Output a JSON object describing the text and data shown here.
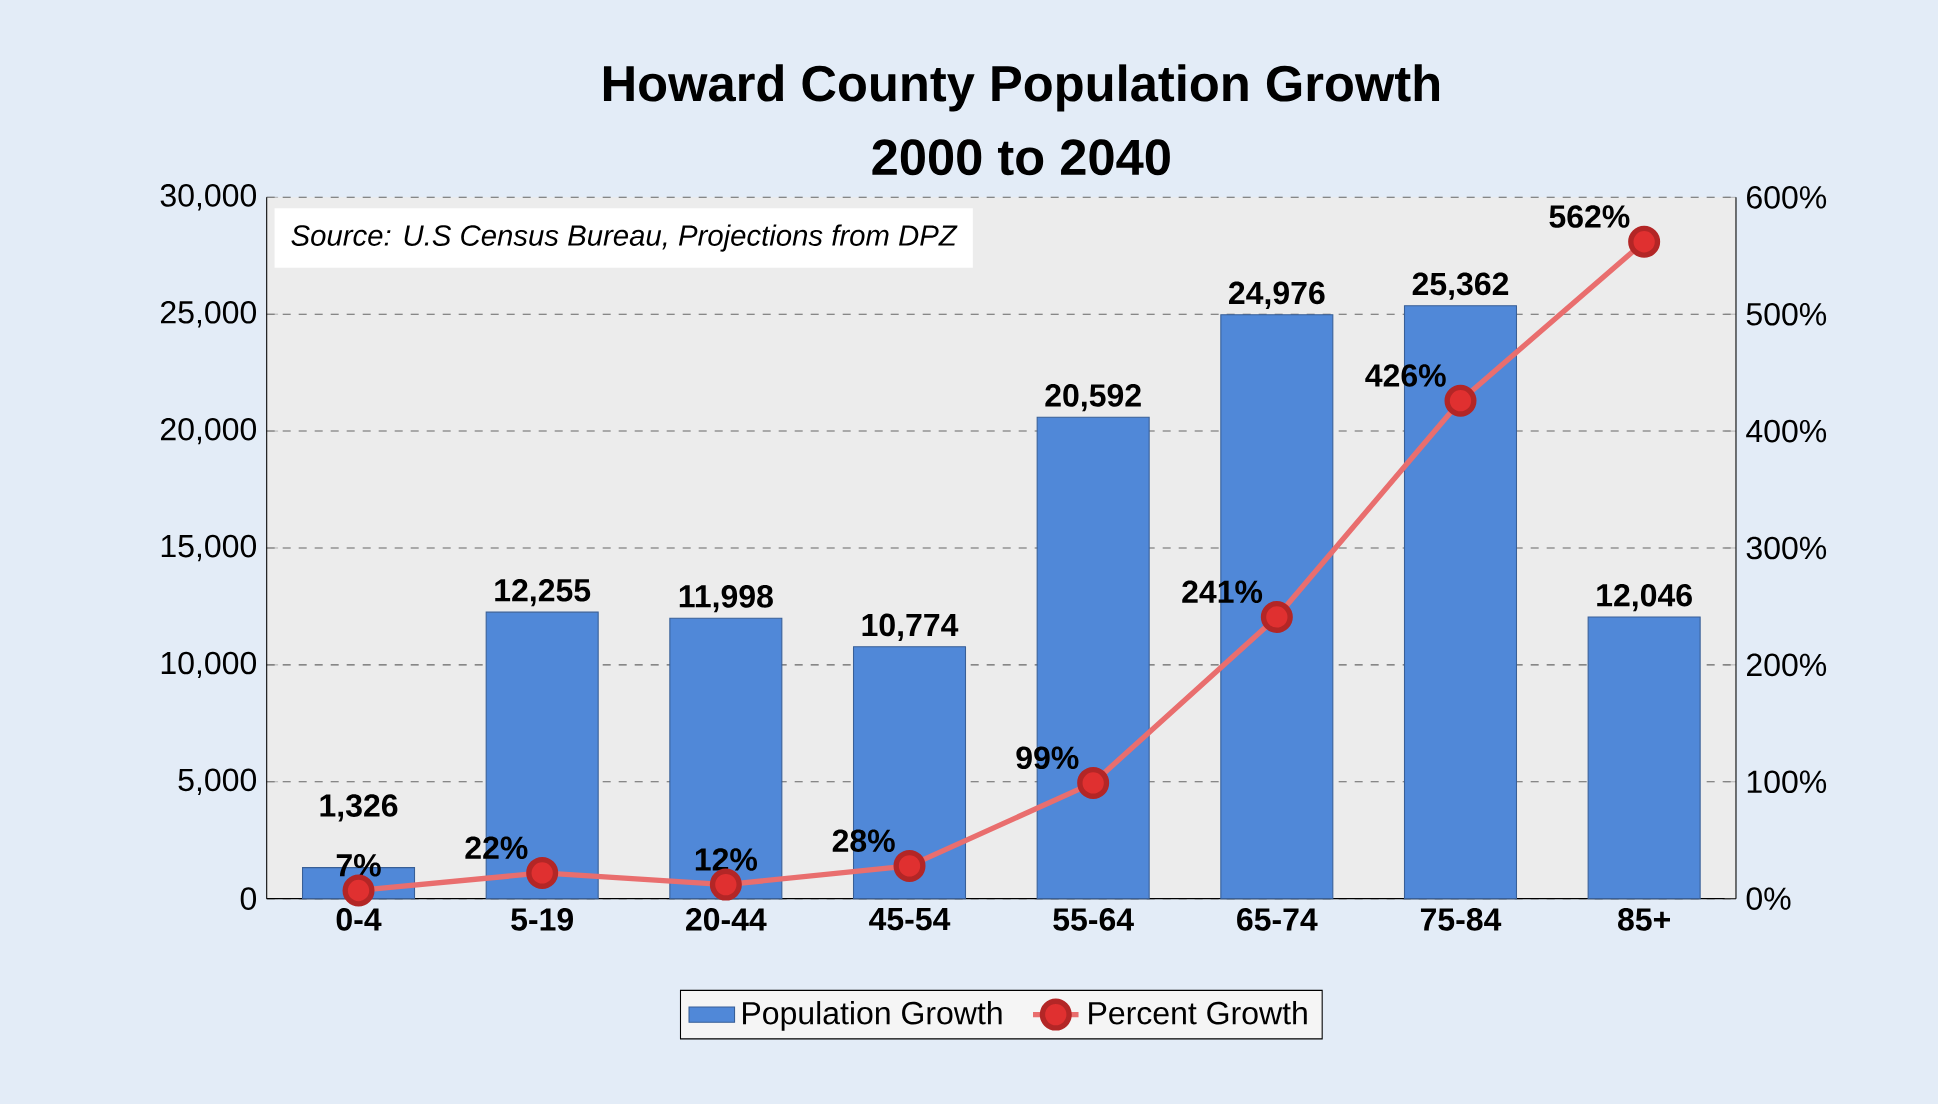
{
  "chart_data": {
    "type": "bar",
    "title": "Howard County Population Growth",
    "subtitle": "2000 to 2040",
    "annotations": [
      "Source:  U.S Census Bureau, Projections from DPZ"
    ],
    "categories": [
      "0-4",
      "5-19",
      "20-44",
      "45-54",
      "55-64",
      "65-74",
      "75-84",
      "85+"
    ],
    "series": [
      {
        "name": "Population Growth",
        "color": "#5088d8",
        "values": [
          1326,
          12255,
          11998,
          10774,
          20592,
          24976,
          25362,
          12046
        ],
        "value_labels": [
          "1,326",
          "12,255",
          "11,998",
          "10,774",
          "20,592",
          "24,976",
          "25,362",
          "12,046"
        ]
      },
      {
        "name": "Percent Growth",
        "type": "line",
        "axis": "y2",
        "color": "#e03030",
        "marker": "circle",
        "line_style": "solid",
        "values": [
          7,
          22,
          12,
          28,
          99,
          241,
          426,
          562
        ],
        "value_labels": [
          "7%",
          "22%",
          "12%",
          "28%",
          "99%",
          "241%",
          "426%",
          "562%"
        ]
      }
    ],
    "ylim": [
      0,
      30000
    ],
    "yticks": [
      0,
      {
        "value": 5000,
        "label": "5,000"
      },
      {
        "value": 10000,
        "label": "10,000"
      },
      {
        "value": 15000,
        "label": "15,000"
      },
      {
        "value": 20000,
        "label": "20,000"
      },
      {
        "value": 25000,
        "label": "25,000"
      },
      {
        "value": 30000,
        "label": "30,000"
      }
    ],
    "y2lim": [
      0,
      600
    ],
    "y2ticks": [
      {
        "value": 0,
        "label": "0%"
      },
      {
        "value": 100,
        "label": "100%"
      },
      {
        "value": 200,
        "label": "200%"
      },
      {
        "value": 300,
        "label": "300%"
      },
      {
        "value": 400,
        "label": "400%"
      },
      {
        "value": 500,
        "label": "500%"
      },
      {
        "value": 600,
        "label": "600%"
      }
    ],
    "grid": "y",
    "legend": "bottom"
  }
}
